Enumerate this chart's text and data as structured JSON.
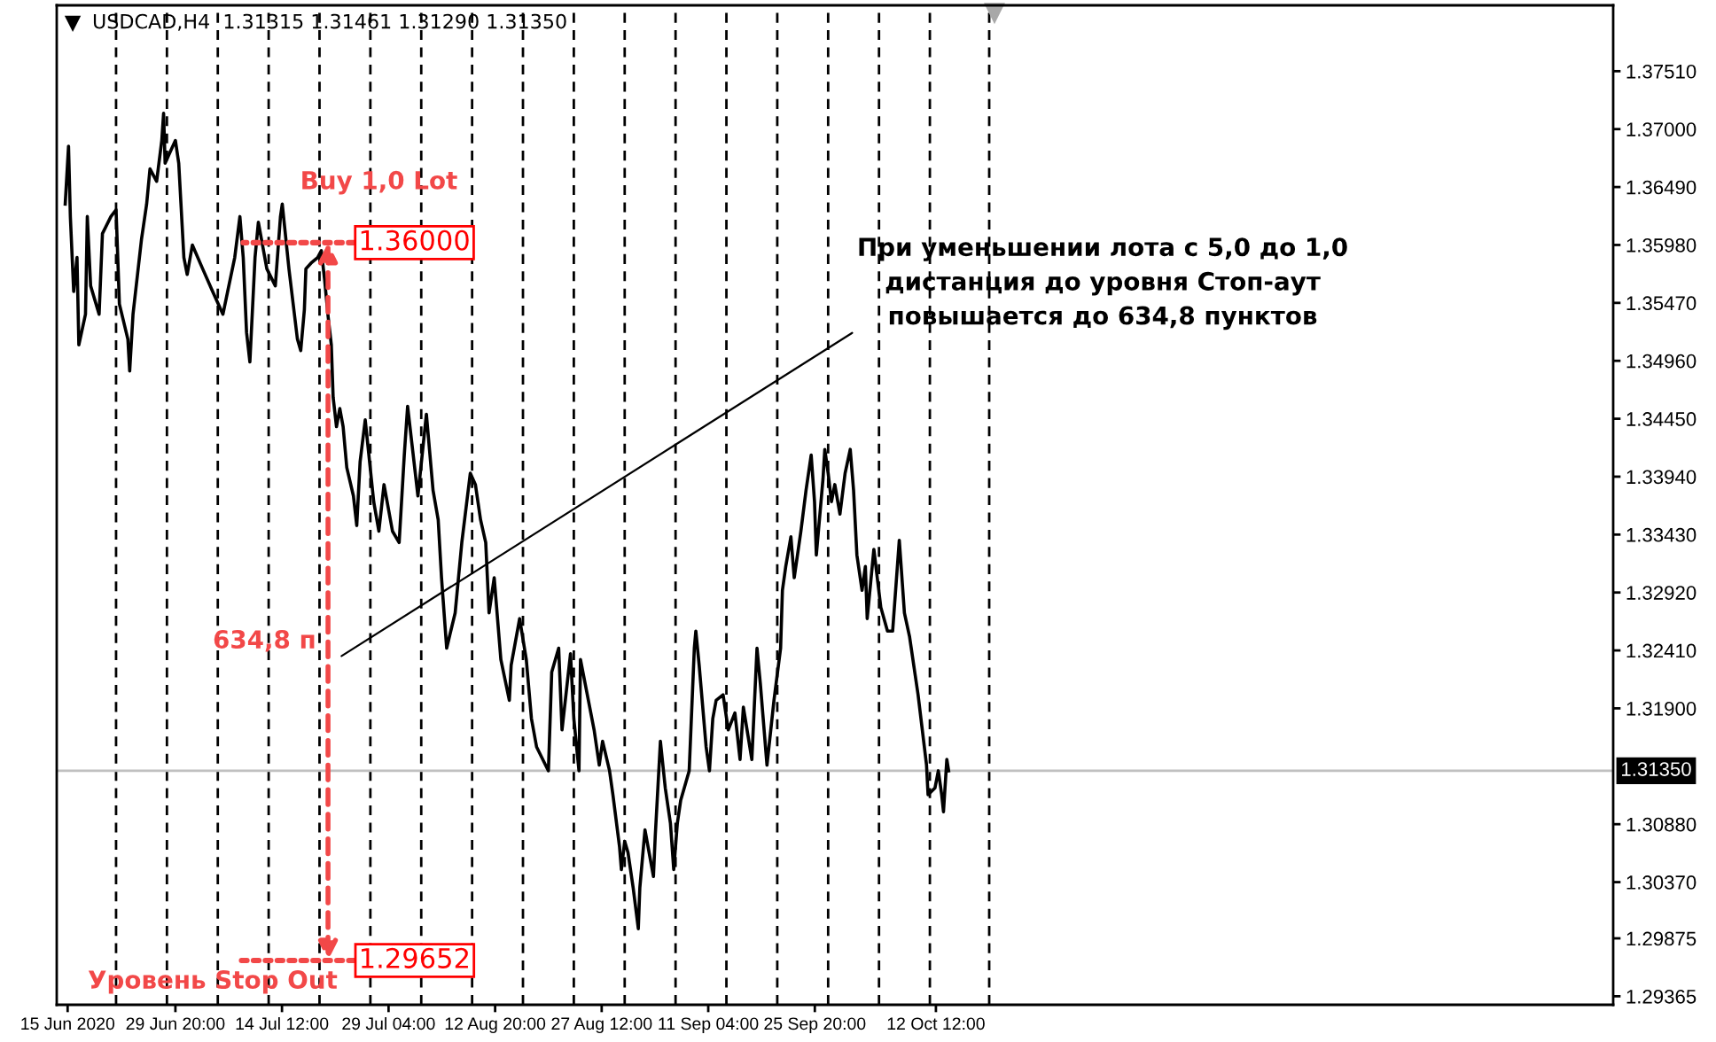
{
  "chart_data": {
    "type": "line",
    "title": "USDCAD,H4  1.31315 1.31461 1.31290 1.31350",
    "color": "#000000",
    "line_style": "solid",
    "x": [
      "2020-06-14T16:00",
      "2020-06-15T03:00",
      "2020-06-15T09:00",
      "2020-06-15T20:00",
      "2020-06-16T07:00",
      "2020-06-16T13:00",
      "2020-06-17T11:00",
      "2020-06-17T17:00",
      "2020-06-18T04:00",
      "2020-06-19T08:00",
      "2020-06-19T19:00",
      "2020-06-20T23:00",
      "2020-06-21T16:00",
      "2020-06-22T03:00",
      "2020-06-23T07:00",
      "2020-06-23T13:00",
      "2020-06-24T00:00",
      "2020-06-25T04:00",
      "2020-06-25T21:00",
      "2020-06-26T08:00",
      "2020-06-27T06:00",
      "2020-06-27T23:00",
      "2020-06-28T05:00",
      "2020-06-28T10:00",
      "2020-06-29T03:00",
      "2020-06-29T20:00",
      "2020-06-30T07:00",
      "2020-07-01T00:00",
      "2020-07-01T11:00",
      "2020-07-02T04:00",
      "2020-07-03T14:00",
      "2020-07-04T23:00",
      "2020-07-06T09:00",
      "2020-07-08T00:00",
      "2020-07-08T17:00",
      "2020-07-09T04:00",
      "2020-07-09T15:00",
      "2020-07-10T02:00",
      "2020-07-10T19:00",
      "2020-07-11T06:00",
      "2020-07-12T10:00",
      "2020-07-13T14:00",
      "2020-07-14T07:00",
      "2020-07-14T13:00",
      "2020-07-15T11:00",
      "2020-07-16T15:00",
      "2020-07-17T02:00",
      "2020-07-17T14:00",
      "2020-07-17T19:00",
      "2020-07-18T12:00",
      "2020-07-19T10:00",
      "2020-07-19T22:00",
      "2020-07-20T09:00",
      "2020-07-20T20:00",
      "2020-07-21T07:00",
      "2020-07-21T13:00",
      "2020-07-22T00:00",
      "2020-07-22T11:00",
      "2020-07-22T22:00",
      "2020-07-23T10:00",
      "2020-07-24T08:00",
      "2020-07-24T19:00",
      "2020-07-25T06:00",
      "2020-07-25T23:00",
      "2020-07-27T03:00",
      "2020-07-27T20:00",
      "2020-07-28T13:00",
      "2020-07-29T17:00",
      "2020-07-30T15:00",
      "2020-07-31T08:00",
      "2020-07-31T19:00",
      "2020-08-02T05:00",
      "2020-08-03T09:00",
      "2020-08-04T07:00",
      "2020-08-05T00:00",
      "2020-08-05T11:00",
      "2020-08-06T04:00",
      "2020-08-07T08:00",
      "2020-08-08T06:00",
      "2020-08-09T10:00",
      "2020-08-10T03:00",
      "2020-08-10T20:00",
      "2020-08-11T13:00",
      "2020-08-12T00:00",
      "2020-08-12T17:00",
      "2020-08-13T15:00",
      "2020-08-14T19:00",
      "2020-08-15T01:00",
      "2020-08-16T05:00",
      "2020-08-17T03:00",
      "2020-08-17T20:00",
      "2020-08-18T13:00",
      "2020-08-20T04:00",
      "2020-08-20T15:00",
      "2020-08-21T14:00",
      "2020-08-22T01:00",
      "2020-08-23T05:00",
      "2020-08-23T16:00",
      "2020-08-24T09:00",
      "2020-08-24T14:00",
      "2020-08-26T11:00",
      "2020-08-27T04:00",
      "2020-08-27T15:00",
      "2020-08-28T14:00",
      "2020-08-29T01:00",
      "2020-08-29T23:00",
      "2020-08-30T05:00",
      "2020-08-30T16:00",
      "2020-08-31T03:00",
      "2020-08-31T20:00",
      "2020-09-01T13:00",
      "2020-09-01T18:00",
      "2020-09-02T11:00",
      "2020-09-03T15:00",
      "2020-09-03T21:00",
      "2020-09-04T14:00",
      "2020-09-05T06:00",
      "2020-09-05T23:00",
      "2020-09-06T10:00",
      "2020-09-06T22:00",
      "2020-09-07T09:00",
      "2020-09-08T13:00",
      "2020-09-09T06:00",
      "2020-09-09T11:00",
      "2020-09-09T22:00",
      "2020-09-10T21:00",
      "2020-09-11T08:00",
      "2020-09-11T19:00",
      "2020-09-12T06:00",
      "2020-09-13T05:00",
      "2020-09-13T22:00",
      "2020-09-14T20:00",
      "2020-09-15T13:00",
      "2020-09-16T00:00",
      "2020-09-17T04:00",
      "2020-09-17T21:00",
      "2020-09-18T08:00",
      "2020-09-19T06:00",
      "2020-09-20T05:00",
      "2020-09-21T03:00",
      "2020-09-21T09:00",
      "2020-09-21T20:00",
      "2020-09-22T13:00",
      "2020-09-23T00:00",
      "2020-09-23T22:00",
      "2020-09-24T15:00",
      "2020-09-25T08:00",
      "2020-09-25T19:00",
      "2020-09-26T01:00",
      "2020-09-26T23:00",
      "2020-09-27T05:00",
      "2020-09-27T16:00",
      "2020-09-28T03:00",
      "2020-09-28T14:00",
      "2020-09-29T07:00",
      "2020-09-30T00:00",
      "2020-09-30T17:00",
      "2020-10-01T04:00",
      "2020-10-01T15:00",
      "2020-10-02T08:00",
      "2020-10-02T19:00",
      "2020-10-03T01:00",
      "2020-10-03T23:00",
      "2020-10-04T22:00",
      "2020-10-05T20:00",
      "2020-10-06T13:00",
      "2020-10-07T11:00",
      "2020-10-08T04:00",
      "2020-10-08T21:00",
      "2020-10-10T01:00",
      "2020-10-11T05:00",
      "2020-10-11T10:00",
      "2020-10-12T09:00",
      "2020-10-12T20:00",
      "2020-10-13T07:00",
      "2020-10-13T13:00",
      "2020-10-14T00:00",
      "2020-10-14T06:00"
    ],
    "values": [
      1.3634,
      1.3685,
      1.3623,
      1.3557,
      1.3587,
      1.351,
      1.3537,
      1.3623,
      1.3562,
      1.3537,
      1.3608,
      1.3623,
      1.3629,
      1.3546,
      1.3515,
      1.3487,
      1.3537,
      1.3603,
      1.3634,
      1.3665,
      1.3654,
      1.369,
      1.3714,
      1.367,
      1.368,
      1.369,
      1.367,
      1.3587,
      1.3572,
      1.3598,
      1.3577,
      1.3557,
      1.3537,
      1.3587,
      1.3623,
      1.3587,
      1.3521,
      1.3495,
      1.3587,
      1.3618,
      1.3577,
      1.3562,
      1.3623,
      1.3634,
      1.3577,
      1.3515,
      1.3505,
      1.3541,
      1.3577,
      1.3582,
      1.3587,
      1.3593,
      1.3567,
      1.3536,
      1.351,
      1.3464,
      1.3438,
      1.3454,
      1.3438,
      1.3402,
      1.3377,
      1.3351,
      1.3407,
      1.3444,
      1.3372,
      1.3346,
      1.3387,
      1.3346,
      1.3336,
      1.3413,
      1.3456,
      1.3377,
      1.3449,
      1.3382,
      1.3356,
      1.3305,
      1.3243,
      1.3274,
      1.3336,
      1.3397,
      1.3387,
      1.3356,
      1.3336,
      1.3274,
      1.3305,
      1.3233,
      1.3197,
      1.3228,
      1.3269,
      1.3233,
      1.3181,
      1.3156,
      1.3135,
      1.3222,
      1.3243,
      1.3171,
      1.3238,
      1.3181,
      1.3135,
      1.3233,
      1.3171,
      1.314,
      1.3161,
      1.3135,
      1.3114,
      1.3068,
      1.3048,
      1.3073,
      1.3063,
      1.3032,
      1.2996,
      1.3032,
      1.3083,
      1.3042,
      1.3078,
      1.3161,
      1.312,
      1.3089,
      1.3048,
      1.3089,
      1.3109,
      1.3135,
      1.3243,
      1.3258,
      1.3228,
      1.3156,
      1.3135,
      1.3181,
      1.3197,
      1.3202,
      1.3171,
      1.3186,
      1.3145,
      1.3191,
      1.3145,
      1.3243,
      1.3212,
      1.314,
      1.3197,
      1.3243,
      1.3294,
      1.3315,
      1.3341,
      1.3305,
      1.3346,
      1.3382,
      1.3413,
      1.3372,
      1.3325,
      1.3392,
      1.3418,
      1.3397,
      1.3372,
      1.3387,
      1.3361,
      1.3397,
      1.3418,
      1.3382,
      1.3325,
      1.3294,
      1.3315,
      1.3269,
      1.333,
      1.3279,
      1.3258,
      1.3258,
      1.3338,
      1.3274,
      1.3253,
      1.3202,
      1.314,
      1.3114,
      1.312,
      1.3135,
      1.3114,
      1.3099,
      1.3145,
      1.3135
    ],
    "xlim": [
      "2020-06-13T12:00",
      "2021-01-13T17:00"
    ],
    "xticks": [
      {
        "value": "2020-06-15",
        "label": "15 Jun 2020"
      },
      {
        "value": "2020-06-29T20:00",
        "label": "29 Jun 20:00"
      },
      {
        "value": "2020-07-14T12:00",
        "label": "14 Jul 12:00"
      },
      {
        "value": "2020-07-29T04:00",
        "label": "29 Jul 04:00"
      },
      {
        "value": "2020-08-12T20:00",
        "label": "12 Aug 20:00"
      },
      {
        "value": "2020-08-27T12:00",
        "label": "27 Aug 12:00"
      },
      {
        "value": "2020-09-11T04:00",
        "label": "11 Sep 04:00"
      },
      {
        "value": "2020-09-25T20:00",
        "label": "25 Sep 20:00"
      },
      {
        "value": "2020-10-12T12:00",
        "label": "12 Oct 12:00"
      }
    ],
    "ylim": [
      1.2929,
      1.3809
    ],
    "yticks": [
      {
        "value": 1.3751,
        "label": "1.37510"
      },
      {
        "value": 1.37,
        "label": "1.37000"
      },
      {
        "value": 1.3649,
        "label": "1.36490"
      },
      {
        "value": 1.3598,
        "label": "1.35980"
      },
      {
        "value": 1.3547,
        "label": "1.35470"
      },
      {
        "value": 1.3496,
        "label": "1.34960"
      },
      {
        "value": 1.3445,
        "label": "1.34450"
      },
      {
        "value": 1.3394,
        "label": "1.33940"
      },
      {
        "value": 1.3343,
        "label": "1.33430"
      },
      {
        "value": 1.3292,
        "label": "1.32920"
      },
      {
        "value": 1.3241,
        "label": "1.32410"
      },
      {
        "value": 1.319,
        "label": "1.31900"
      },
      {
        "value": 1.3088,
        "label": "1.30880"
      },
      {
        "value": 1.3037,
        "label": "1.30370"
      },
      {
        "value": 1.29875,
        "label": "1.29875"
      },
      {
        "value": 1.29365,
        "label": "1.29365"
      }
    ],
    "ref_lines": [
      {
        "axis": "x",
        "value": "2020-06-21T16:00",
        "color": "#000000",
        "line_style": "dashed"
      },
      {
        "axis": "x",
        "value": "2020-06-28T16:00",
        "color": "#000000",
        "line_style": "dashed"
      },
      {
        "axis": "x",
        "value": "2020-07-05T16:00",
        "color": "#000000",
        "line_style": "dashed"
      },
      {
        "axis": "x",
        "value": "2020-07-12T16:00",
        "color": "#000000",
        "line_style": "dashed"
      },
      {
        "axis": "x",
        "value": "2020-07-19T16:00",
        "color": "#000000",
        "line_style": "dashed"
      },
      {
        "axis": "x",
        "value": "2020-07-26T16:00",
        "color": "#000000",
        "line_style": "dashed"
      },
      {
        "axis": "x",
        "value": "2020-08-02T16:00",
        "color": "#000000",
        "line_style": "dashed"
      },
      {
        "axis": "x",
        "value": "2020-08-09T16:00",
        "color": "#000000",
        "line_style": "dashed"
      },
      {
        "axis": "x",
        "value": "2020-08-16T16:00",
        "color": "#000000",
        "line_style": "dashed"
      },
      {
        "axis": "x",
        "value": "2020-08-23T16:00",
        "color": "#000000",
        "line_style": "dashed"
      },
      {
        "axis": "x",
        "value": "2020-08-30T16:00",
        "color": "#000000",
        "line_style": "dashed"
      },
      {
        "axis": "x",
        "value": "2020-09-06T16:00",
        "color": "#000000",
        "line_style": "dashed"
      },
      {
        "axis": "x",
        "value": "2020-09-13T16:00",
        "color": "#000000",
        "line_style": "dashed"
      },
      {
        "axis": "x",
        "value": "2020-09-20T16:00",
        "color": "#000000",
        "line_style": "dashed"
      },
      {
        "axis": "x",
        "value": "2020-09-27T16:00",
        "color": "#000000",
        "line_style": "dashed"
      },
      {
        "axis": "x",
        "value": "2020-10-04T16:00",
        "color": "#000000",
        "line_style": "dashed"
      },
      {
        "axis": "x",
        "value": "2020-10-11T16:00",
        "color": "#000000",
        "line_style": "dashed"
      },
      {
        "axis": "x",
        "value": "2020-10-19T20:00",
        "color": "#000000",
        "line_style": "dashed"
      },
      {
        "axis": "y",
        "value": 1.3135,
        "label": "1.31350",
        "color": "#c0c0c0",
        "line_style": "solid"
      }
    ],
    "annotations": [
      "Buy 1,0 Lot",
      {
        "text": "1.36000",
        "x": "2020-07-09T04:00",
        "y": 1.36
      },
      "1.29652",
      "634,8 п",
      "Уровень Stop Out",
      "При уменьшении лота с 5,0 до 1,0\nдистанция до уровня Стоп-аут\nповышается до 634,8 пунктов"
    ]
  }
}
